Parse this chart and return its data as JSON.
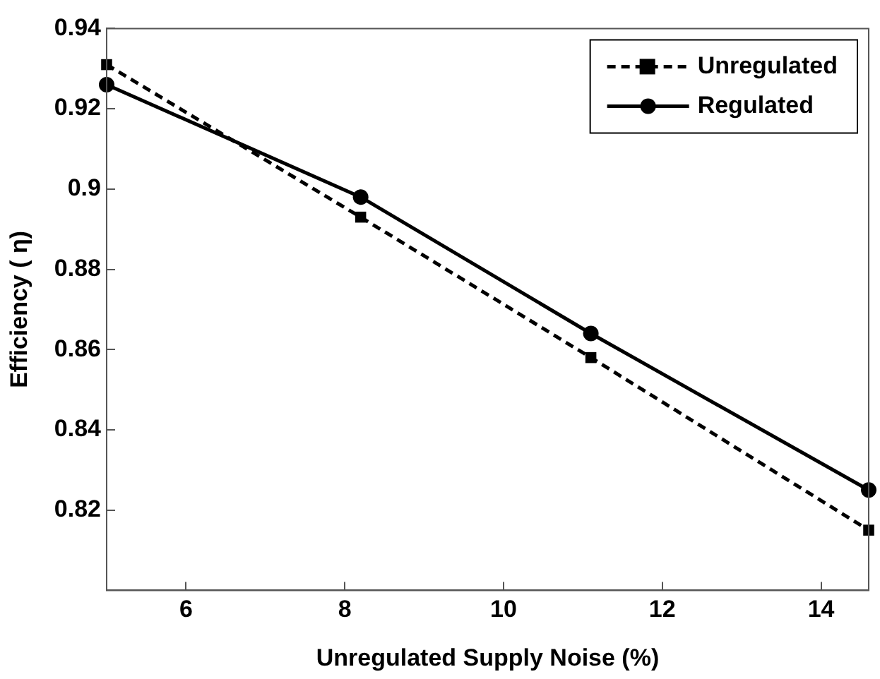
{
  "chart_data": {
    "type": "line",
    "xlabel": "Unregulated Supply Noise (%)",
    "ylabel": "Efficiency ( η)",
    "xlim": [
      5,
      14.6
    ],
    "xticks": [
      6,
      8,
      10,
      12,
      14
    ],
    "ylim": [
      0.8,
      0.94
    ],
    "yticks": [
      {
        "value": 0.8,
        "label": null
      },
      0.82,
      0.84,
      0.86,
      0.88,
      0.9,
      0.92,
      0.94
    ],
    "x": [
      5,
      8.2,
      11.1,
      14.6
    ],
    "legend": "top right",
    "grid": false,
    "series": [
      {
        "name": "Unregulated",
        "color": "#000000",
        "marker": "square",
        "line_style": "dashed",
        "values": [
          0.931,
          0.893,
          0.858,
          0.815
        ]
      },
      {
        "name": "Regulated",
        "color": "#000000",
        "marker": "circle",
        "line_style": "solid",
        "values": [
          0.926,
          0.898,
          0.864,
          0.825
        ]
      }
    ]
  }
}
